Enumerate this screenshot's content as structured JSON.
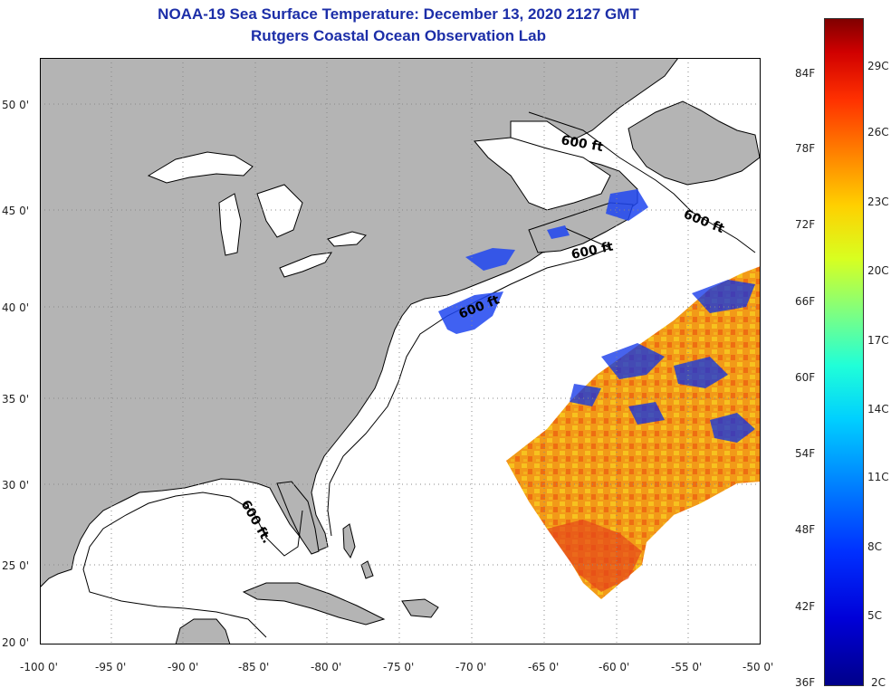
{
  "title_line1": "NOAA-19 Sea Surface Temperature:  December 13, 2020 2127 GMT",
  "title_line2": "Rutgers Coastal Ocean Observation Lab",
  "map": {
    "lat_labels": [
      "50 0'",
      "45 0'",
      "40 0'",
      "35 0'",
      "30 0'",
      "25 0'",
      "20 0'"
    ],
    "lon_labels": [
      "-100 0'",
      "-95 0'",
      "-90 0'",
      "-85 0'",
      "-80 0'",
      "-75 0'",
      "-70 0'",
      "-65 0'",
      "-60 0'",
      "-55 0'",
      "-50 0'"
    ],
    "contour_labels": [
      "600 ft",
      "600 ft",
      "600 ft",
      "600 ft",
      "600 ft."
    ],
    "land_color": "#b4b4b4",
    "water_color": "#ffffff"
  },
  "colorbar": {
    "fahrenheit_labels": [
      "84F",
      "78F",
      "72F",
      "66F",
      "60F",
      "54F",
      "48F",
      "42F",
      "36F"
    ],
    "celsius_labels": [
      "29C",
      "26C",
      "23C",
      "20C",
      "17C",
      "14C",
      "11C",
      "8C",
      "5C",
      "2C"
    ],
    "colors": [
      "#00008a",
      "#0000d8",
      "#0080ff",
      "#00d0ff",
      "#7fff80",
      "#d8ff20",
      "#ffd000",
      "#ff8000",
      "#ff3000",
      "#800000"
    ]
  }
}
